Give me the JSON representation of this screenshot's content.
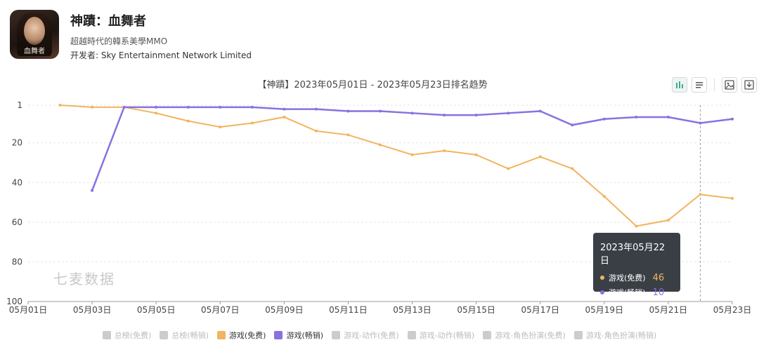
{
  "app": {
    "title": "神蹟：血舞者",
    "subtitle": "超越時代的韓系美學MMO",
    "developer_label": "开发者:",
    "developer": "Sky Entertainment Network Limited",
    "icon_text": "血舞者"
  },
  "toolbar": {
    "icons": [
      "bar-chart-icon",
      "list-icon",
      "image-download-icon",
      "download-icon"
    ]
  },
  "watermark": "七麦数据",
  "tooltip": {
    "date": "2023年05月22日",
    "rows": [
      {
        "name": "游戏(免费)",
        "value": "46",
        "color": "#f2b45e"
      },
      {
        "name": "游戏(畅销)",
        "value": "10",
        "color": "#8a70e0"
      }
    ]
  },
  "legend": [
    {
      "label": "总榜(免费)",
      "color": "#cccccc",
      "active": false
    },
    {
      "label": "总榜(畅销)",
      "color": "#cccccc",
      "active": false
    },
    {
      "label": "游戏(免费)",
      "color": "#f2b45e",
      "active": true
    },
    {
      "label": "游戏(畅销)",
      "color": "#8a70e0",
      "active": true
    },
    {
      "label": "游戏-动作(免费)",
      "color": "#cccccc",
      "active": false
    },
    {
      "label": "游戏-动作(畅销)",
      "color": "#cccccc",
      "active": false
    },
    {
      "label": "游戏-角色扮演(免费)",
      "color": "#cccccc",
      "active": false
    },
    {
      "label": "游戏-角色扮演(畅销)",
      "color": "#cccccc",
      "active": false
    }
  ],
  "chart_data": {
    "type": "line",
    "title": "【神蹟】2023年05月01日 - 2023年05月23日排名趋势",
    "x": [
      "05月01日",
      "05月02日",
      "05月03日",
      "05月04日",
      "05月05日",
      "05月06日",
      "05月07日",
      "05月08日",
      "05月09日",
      "05月10日",
      "05月11日",
      "05月12日",
      "05月13日",
      "05月14日",
      "05月15日",
      "05月16日",
      "05月17日",
      "05月18日",
      "05月19日",
      "05月20日",
      "05月21日",
      "05月22日",
      "05月23日"
    ],
    "x_tick_labels": [
      "05月01日",
      "05月03日",
      "05月05日",
      "05月07日",
      "05月09日",
      "05月11日",
      "05月13日",
      "05月15日",
      "05月17日",
      "05月19日",
      "05月21日",
      "05月23日"
    ],
    "y_ticks": [
      1,
      20,
      40,
      60,
      80,
      100
    ],
    "ylim": [
      1,
      100
    ],
    "y_inverted": true,
    "grid": true,
    "series": [
      {
        "name": "游戏(免费)",
        "color": "#f2b45e",
        "values": [
          null,
          1,
          2,
          2,
          5,
          9,
          12,
          10,
          7,
          14,
          16,
          21,
          26,
          24,
          26,
          33,
          27,
          33,
          47,
          62,
          59,
          46,
          48
        ]
      },
      {
        "name": "游戏(畅销)",
        "color": "#8a70e0",
        "values": [
          null,
          null,
          44,
          2,
          2,
          2,
          2,
          2,
          3,
          3,
          4,
          4,
          5,
          6,
          6,
          5,
          4,
          11,
          8,
          7,
          7,
          10,
          8
        ]
      }
    ],
    "highlight_x": "05月22日"
  }
}
